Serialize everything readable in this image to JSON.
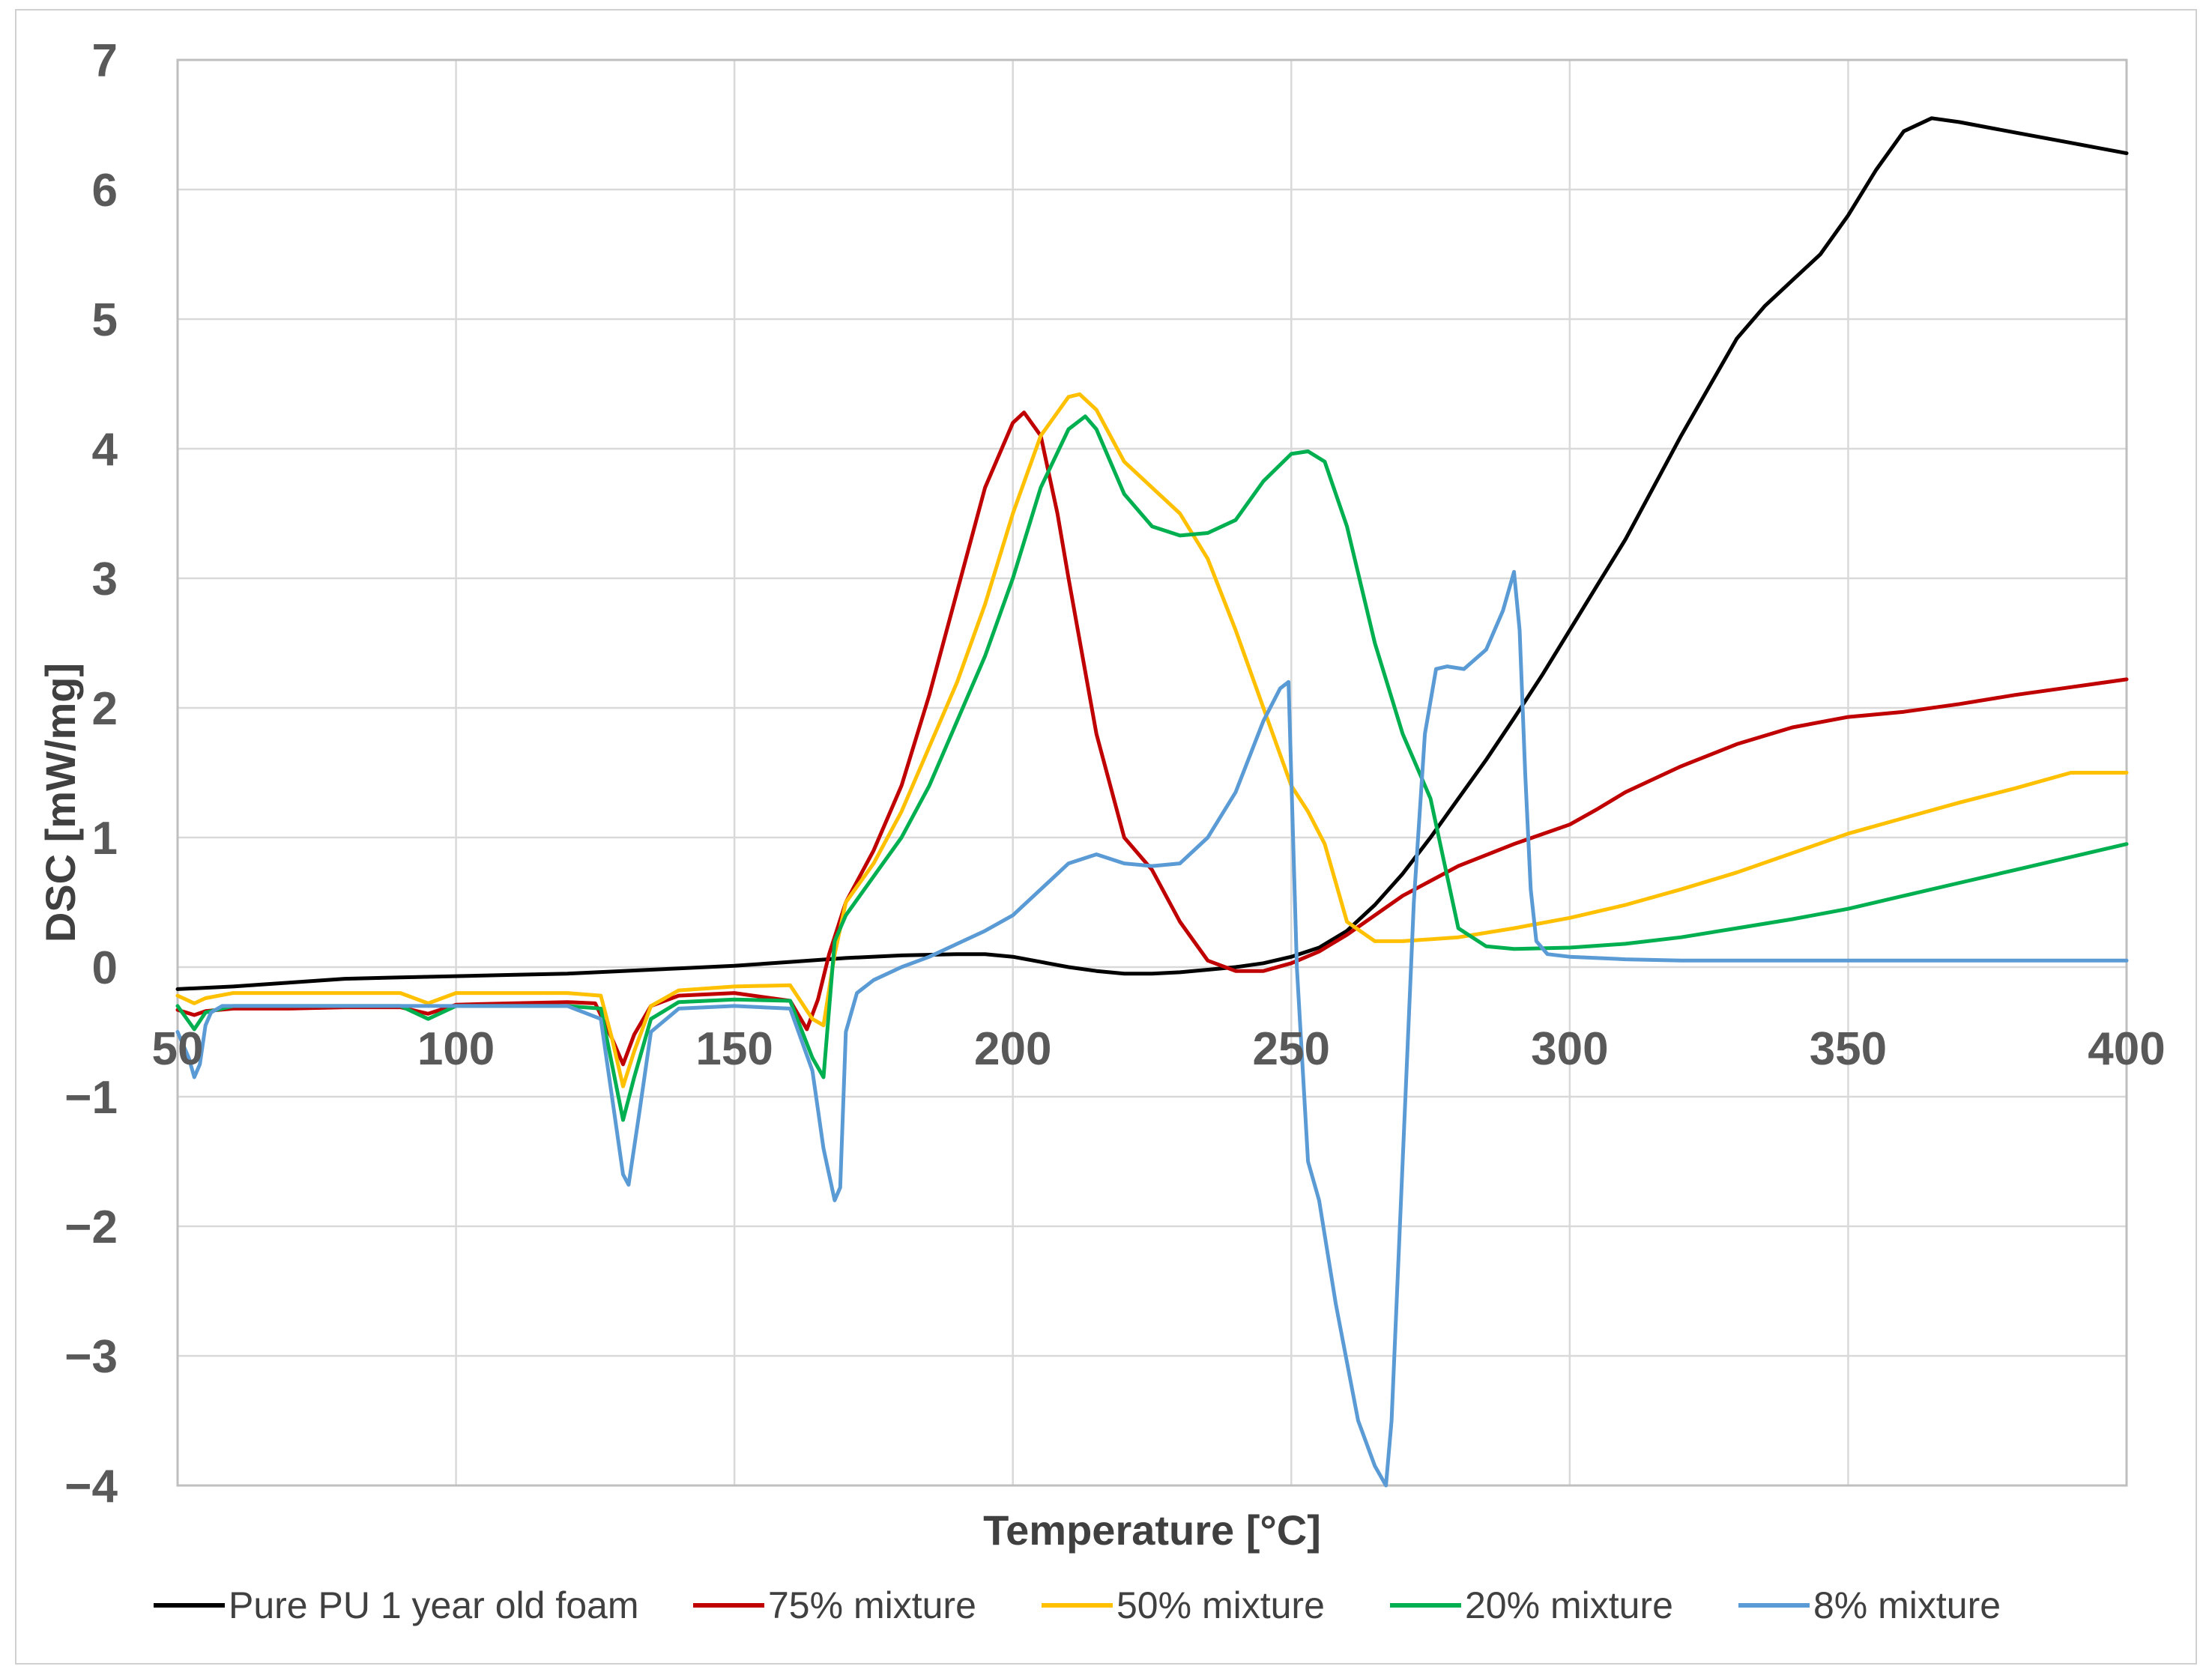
{
  "chart_data": {
    "type": "line",
    "title": "",
    "xlabel": "Temperature [°C]",
    "ylabel": "DSC [mW/mg]",
    "xlim": [
      50,
      400
    ],
    "ylim": [
      -4,
      7
    ],
    "xticks": [
      50,
      100,
      150,
      200,
      250,
      300,
      350,
      400
    ],
    "yticks": [
      7,
      6,
      5,
      4,
      3,
      2,
      1,
      0,
      -1,
      -2,
      -3,
      -4
    ],
    "xtick_labels": [
      "50",
      "100",
      "150",
      "200",
      "250",
      "300",
      "350",
      "400"
    ],
    "ytick_labels": [
      "7",
      "6",
      "5",
      "4",
      "3",
      "2",
      "1",
      "0",
      "−1",
      "−2",
      "−3",
      "−4"
    ],
    "grid": true,
    "legend_position": "bottom",
    "series": [
      {
        "name": "Pure PU 1 year old foam",
        "color": "#000000",
        "x": [
          50,
          60,
          70,
          80,
          90,
          100,
          110,
          120,
          130,
          140,
          150,
          160,
          170,
          180,
          190,
          195,
          200,
          205,
          210,
          215,
          220,
          225,
          230,
          235,
          240,
          245,
          250,
          255,
          260,
          265,
          270,
          275,
          280,
          285,
          290,
          295,
          300,
          305,
          310,
          320,
          330,
          335,
          340,
          345,
          350,
          355,
          360,
          365,
          370,
          375,
          380,
          390,
          400
        ],
        "y": [
          -0.17,
          -0.15,
          -0.12,
          -0.09,
          -0.08,
          -0.07,
          -0.06,
          -0.05,
          -0.03,
          -0.01,
          0.01,
          0.04,
          0.07,
          0.09,
          0.1,
          0.1,
          0.08,
          0.04,
          0.0,
          -0.03,
          -0.05,
          -0.05,
          -0.04,
          -0.02,
          0.0,
          0.03,
          0.08,
          0.15,
          0.28,
          0.48,
          0.72,
          1.0,
          1.3,
          1.6,
          1.92,
          2.25,
          2.6,
          2.95,
          3.3,
          4.1,
          4.85,
          5.1,
          5.3,
          5.5,
          5.8,
          6.15,
          6.45,
          6.55,
          6.52,
          6.48,
          6.44,
          6.36,
          6.28
        ]
      },
      {
        "name": "75% mixture",
        "color": "#c00000",
        "x": [
          50,
          53,
          55,
          60,
          70,
          80,
          90,
          95,
          100,
          110,
          120,
          125,
          128,
          130,
          132,
          135,
          140,
          150,
          160,
          163,
          165,
          167,
          170,
          175,
          180,
          185,
          190,
          195,
          200,
          202,
          205,
          208,
          210,
          215,
          220,
          225,
          230,
          235,
          240,
          245,
          250,
          255,
          260,
          265,
          270,
          280,
          290,
          300,
          305,
          310,
          320,
          330,
          340,
          350,
          360,
          370,
          380,
          390,
          400
        ],
        "y": [
          -0.33,
          -0.37,
          -0.34,
          -0.32,
          -0.32,
          -0.31,
          -0.31,
          -0.36,
          -0.29,
          -0.28,
          -0.27,
          -0.28,
          -0.55,
          -0.75,
          -0.52,
          -0.3,
          -0.22,
          -0.2,
          -0.26,
          -0.48,
          -0.25,
          0.1,
          0.5,
          0.9,
          1.4,
          2.1,
          2.9,
          3.7,
          4.2,
          4.28,
          4.1,
          3.5,
          3.0,
          1.8,
          1.0,
          0.75,
          0.35,
          0.05,
          -0.03,
          -0.03,
          0.03,
          0.12,
          0.25,
          0.4,
          0.55,
          0.78,
          0.95,
          1.1,
          1.22,
          1.35,
          1.55,
          1.72,
          1.85,
          1.93,
          1.97,
          2.03,
          2.1,
          2.16,
          2.22
        ]
      },
      {
        "name": "50% mixture",
        "color": "#ffc000",
        "x": [
          50,
          53,
          55,
          60,
          70,
          80,
          90,
          95,
          100,
          110,
          120,
          126,
          128,
          130,
          132,
          135,
          140,
          150,
          160,
          164,
          166,
          168,
          170,
          175,
          180,
          185,
          190,
          195,
          200,
          205,
          210,
          212,
          215,
          220,
          225,
          230,
          235,
          240,
          245,
          250,
          253,
          256,
          260,
          265,
          270,
          280,
          290,
          300,
          310,
          320,
          330,
          340,
          350,
          360,
          370,
          380,
          390,
          400
        ],
        "y": [
          -0.22,
          -0.28,
          -0.24,
          -0.2,
          -0.2,
          -0.2,
          -0.2,
          -0.28,
          -0.2,
          -0.2,
          -0.2,
          -0.22,
          -0.55,
          -0.92,
          -0.65,
          -0.3,
          -0.18,
          -0.15,
          -0.14,
          -0.4,
          -0.45,
          0.1,
          0.5,
          0.8,
          1.2,
          1.7,
          2.2,
          2.8,
          3.5,
          4.1,
          4.4,
          4.42,
          4.3,
          3.9,
          3.7,
          3.5,
          3.15,
          2.6,
          2.0,
          1.4,
          1.2,
          0.95,
          0.35,
          0.2,
          0.2,
          0.23,
          0.3,
          0.38,
          0.48,
          0.6,
          0.73,
          0.88,
          1.03,
          1.15,
          1.27,
          1.38,
          1.5,
          1.5
        ]
      },
      {
        "name": "20% mixture",
        "color": "#00b050",
        "x": [
          50,
          53,
          55,
          60,
          70,
          80,
          90,
          95,
          100,
          110,
          120,
          126,
          128,
          130,
          132,
          135,
          140,
          150,
          160,
          164,
          166,
          168,
          170,
          175,
          180,
          185,
          190,
          195,
          200,
          205,
          210,
          213,
          215,
          220,
          225,
          230,
          235,
          240,
          245,
          250,
          253,
          256,
          260,
          265,
          270,
          275,
          277,
          280,
          285,
          290,
          300,
          310,
          320,
          330,
          340,
          350,
          360,
          370,
          380,
          390,
          400
        ],
        "y": [
          -0.3,
          -0.48,
          -0.35,
          -0.3,
          -0.3,
          -0.3,
          -0.3,
          -0.4,
          -0.3,
          -0.3,
          -0.3,
          -0.32,
          -0.75,
          -1.18,
          -0.85,
          -0.4,
          -0.27,
          -0.25,
          -0.26,
          -0.7,
          -0.85,
          0.2,
          0.4,
          0.7,
          1.0,
          1.4,
          1.9,
          2.4,
          3.0,
          3.7,
          4.15,
          4.25,
          4.15,
          3.65,
          3.4,
          3.33,
          3.35,
          3.45,
          3.75,
          3.96,
          3.98,
          3.9,
          3.4,
          2.5,
          1.8,
          1.3,
          0.9,
          0.3,
          0.16,
          0.14,
          0.15,
          0.18,
          0.23,
          0.3,
          0.37,
          0.45,
          0.55,
          0.65,
          0.75,
          0.85,
          0.95
        ]
      },
      {
        "name": "8% mixture",
        "color": "#5b9bd5",
        "x": [
          50,
          52,
          53,
          54,
          55,
          56,
          58,
          60,
          70,
          80,
          90,
          100,
          110,
          120,
          126,
          128,
          130,
          131,
          133,
          135,
          140,
          150,
          160,
          164,
          166,
          168,
          169,
          170,
          172,
          175,
          180,
          185,
          190,
          195,
          200,
          205,
          210,
          215,
          220,
          225,
          230,
          235,
          240,
          245,
          248,
          249.5,
          251,
          253,
          255,
          258,
          262,
          265,
          267,
          268,
          270,
          272,
          274,
          276,
          278,
          281,
          285,
          288,
          290,
          291,
          292,
          293,
          294,
          296,
          300,
          310,
          320,
          330,
          340,
          350,
          360,
          370,
          380,
          390,
          400
        ],
        "y": [
          -0.5,
          -0.7,
          -0.85,
          -0.75,
          -0.45,
          -0.35,
          -0.3,
          -0.3,
          -0.3,
          -0.3,
          -0.3,
          -0.3,
          -0.3,
          -0.3,
          -0.4,
          -1.0,
          -1.6,
          -1.68,
          -1.1,
          -0.5,
          -0.32,
          -0.3,
          -0.32,
          -0.8,
          -1.4,
          -1.8,
          -1.7,
          -0.5,
          -0.2,
          -0.1,
          0.0,
          0.08,
          0.18,
          0.28,
          0.4,
          0.6,
          0.8,
          0.87,
          0.8,
          0.78,
          0.8,
          1.0,
          1.35,
          1.9,
          2.15,
          2.2,
          0.0,
          -1.5,
          -1.8,
          -2.6,
          -3.5,
          -3.85,
          -4.0,
          -3.5,
          -1.5,
          0.5,
          1.8,
          2.3,
          2.32,
          2.3,
          2.45,
          2.75,
          3.05,
          2.6,
          1.5,
          0.6,
          0.2,
          0.1,
          0.08,
          0.06,
          0.05,
          0.05,
          0.05,
          0.05,
          0.05,
          0.05,
          0.05,
          0.05,
          0.05
        ]
      }
    ]
  }
}
